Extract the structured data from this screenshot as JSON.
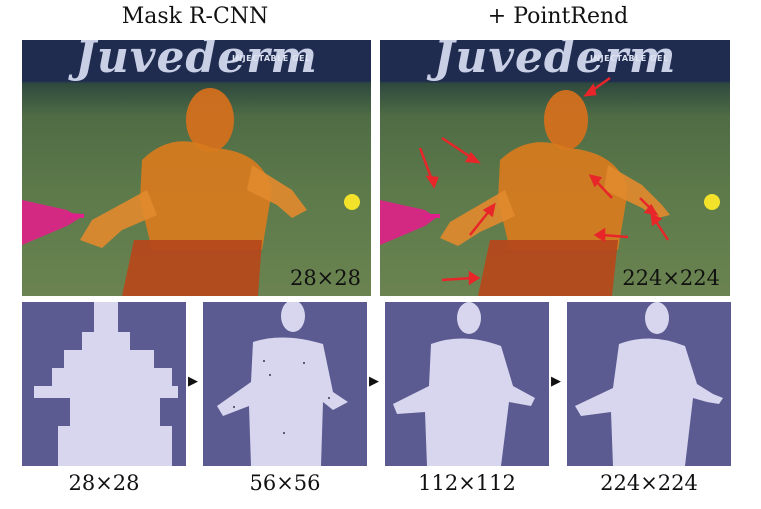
{
  "titles": {
    "left": "Mask R-CNN",
    "right": "+ PointRend"
  },
  "banner": {
    "brand": "Juvederm",
    "sub": "INJECTABLE GEL"
  },
  "top_panels": [
    {
      "method": "Mask R-CNN",
      "resolution_label": "28×28"
    },
    {
      "method": "+ PointRend",
      "resolution_label": "224×224"
    }
  ],
  "mask_steps": [
    {
      "label": "28×28"
    },
    {
      "label": "56×56"
    },
    {
      "label": "112×112"
    },
    {
      "label": "224×224"
    }
  ],
  "colors": {
    "person_mask": "#e07a1e",
    "racket_mask": "#e0208a",
    "ball": "#f2e22a",
    "arrow": "#e8262a",
    "mask_background": "#5b5b92",
    "mask_foreground": "#d8d6ee"
  }
}
